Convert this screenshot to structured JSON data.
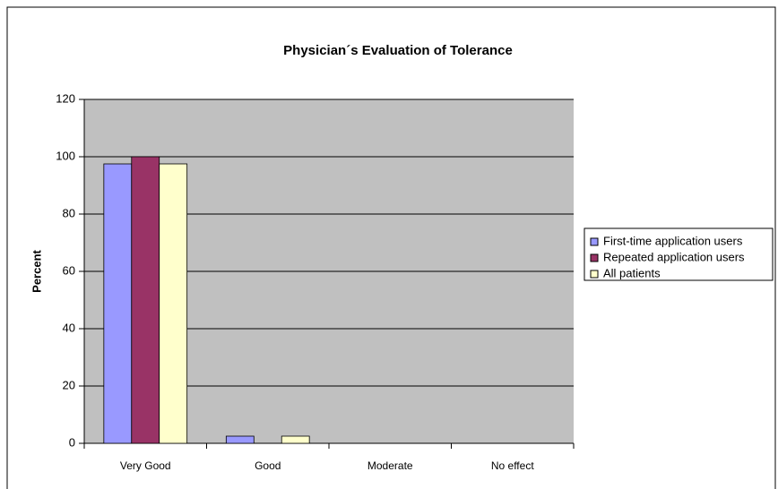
{
  "chart_data": {
    "type": "bar",
    "title": "Physician´s  Evaluation of Tolerance",
    "y_label": "Percent",
    "categories": [
      "Very Good",
      "Good",
      "Moderate",
      "No effect"
    ],
    "series": [
      {
        "name": "First-time application users",
        "color": "#9999ff",
        "values": [
          97.5,
          2.5,
          0,
          0
        ]
      },
      {
        "name": "Repeated application users",
        "color": "#993366",
        "values": [
          100,
          0,
          0,
          0
        ]
      },
      {
        "name": "All patients",
        "color": "#ffffcc",
        "values": [
          97.5,
          2.5,
          0,
          0
        ]
      }
    ],
    "ylim": [
      0,
      120
    ],
    "yticks": [
      0,
      20,
      40,
      60,
      80,
      100,
      120
    ],
    "grid": true,
    "legend": "right"
  }
}
